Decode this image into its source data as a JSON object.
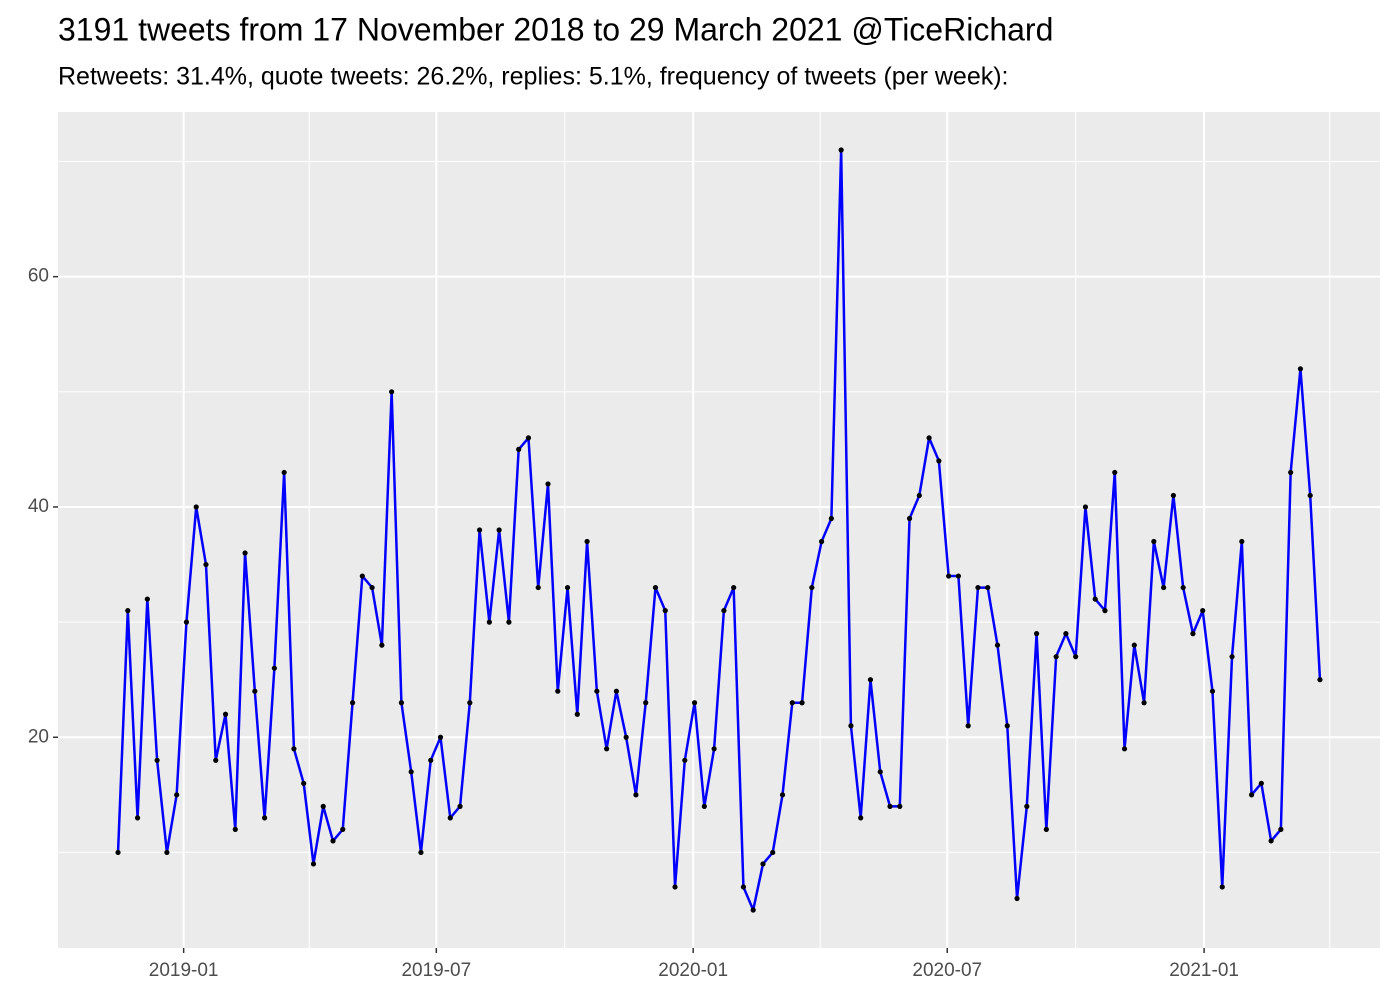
{
  "chart_data": {
    "type": "line",
    "title": "3191 tweets from 17 November 2018 to 29 March 2021 @TiceRichard",
    "subtitle": "Retweets: 31.4%, quote tweets: 26.2%, replies: 5.1%, frequency of tweets (per week):",
    "x": [
      "2018-11-15",
      "2018-11-22",
      "2018-11-29",
      "2018-12-06",
      "2018-12-13",
      "2018-12-20",
      "2018-12-27",
      "2019-01-03",
      "2019-01-10",
      "2019-01-17",
      "2019-01-24",
      "2019-01-31",
      "2019-02-07",
      "2019-02-14",
      "2019-02-21",
      "2019-02-28",
      "2019-03-07",
      "2019-03-14",
      "2019-03-21",
      "2019-03-28",
      "2019-04-04",
      "2019-04-11",
      "2019-04-18",
      "2019-04-25",
      "2019-05-02",
      "2019-05-09",
      "2019-05-16",
      "2019-05-23",
      "2019-05-30",
      "2019-06-06",
      "2019-06-13",
      "2019-06-20",
      "2019-06-27",
      "2019-07-04",
      "2019-07-11",
      "2019-07-18",
      "2019-07-25",
      "2019-08-01",
      "2019-08-08",
      "2019-08-15",
      "2019-08-22",
      "2019-08-29",
      "2019-09-05",
      "2019-09-12",
      "2019-09-19",
      "2019-09-26",
      "2019-10-03",
      "2019-10-10",
      "2019-10-17",
      "2019-10-24",
      "2019-10-31",
      "2019-11-07",
      "2019-11-14",
      "2019-11-21",
      "2019-11-28",
      "2019-12-05",
      "2019-12-12",
      "2019-12-19",
      "2019-12-26",
      "2020-01-02",
      "2020-01-09",
      "2020-01-16",
      "2020-01-23",
      "2020-01-30",
      "2020-02-06",
      "2020-02-13",
      "2020-02-20",
      "2020-02-27",
      "2020-03-05",
      "2020-03-12",
      "2020-03-19",
      "2020-03-26",
      "2020-04-02",
      "2020-04-09",
      "2020-04-16",
      "2020-04-23",
      "2020-04-30",
      "2020-05-07",
      "2020-05-14",
      "2020-05-21",
      "2020-05-28",
      "2020-06-04",
      "2020-06-11",
      "2020-06-18",
      "2020-06-25",
      "2020-07-02",
      "2020-07-09",
      "2020-07-16",
      "2020-07-23",
      "2020-07-30",
      "2020-08-06",
      "2020-08-13",
      "2020-08-20",
      "2020-08-27",
      "2020-09-03",
      "2020-09-10",
      "2020-09-17",
      "2020-09-24",
      "2020-10-01",
      "2020-10-08",
      "2020-10-15",
      "2020-10-22",
      "2020-10-29",
      "2020-11-05",
      "2020-11-12",
      "2020-11-19",
      "2020-11-26",
      "2020-12-03",
      "2020-12-10",
      "2020-12-17",
      "2020-12-24",
      "2020-12-31",
      "2021-01-07",
      "2021-01-14",
      "2021-01-21",
      "2021-01-28",
      "2021-02-04",
      "2021-02-11",
      "2021-02-18",
      "2021-02-25",
      "2021-03-04",
      "2021-03-11",
      "2021-03-18",
      "2021-03-25"
    ],
    "series": [
      {
        "color": "#0000ff",
        "point_color": "#000000",
        "values": [
          10,
          31,
          13,
          32,
          18,
          10,
          15,
          30,
          40,
          35,
          18,
          22,
          12,
          36,
          24,
          13,
          26,
          43,
          19,
          16,
          9,
          14,
          11,
          12,
          23,
          34,
          33,
          28,
          50,
          23,
          17,
          10,
          18,
          20,
          13,
          14,
          23,
          38,
          30,
          38,
          30,
          45,
          46,
          33,
          42,
          24,
          33,
          22,
          37,
          24,
          19,
          24,
          20,
          15,
          23,
          33,
          31,
          7,
          18,
          23,
          14,
          19,
          31,
          33,
          7,
          5,
          9,
          10,
          15,
          23,
          23,
          33,
          37,
          39,
          71,
          21,
          13,
          25,
          17,
          14,
          14,
          39,
          41,
          46,
          44,
          34,
          34,
          21,
          33,
          33,
          28,
          21,
          6,
          14,
          29,
          12,
          27,
          29,
          27,
          40,
          32,
          31,
          43,
          19,
          28,
          23,
          37,
          33,
          41,
          33,
          29,
          31,
          24,
          7,
          27,
          37,
          15,
          16,
          11,
          12,
          43,
          52,
          41,
          25
        ]
      }
    ],
    "xlim": [
      "2018-10-03",
      "2021-05-07"
    ],
    "xticks": [
      {
        "value": "2019-01-01",
        "label": "2019-01"
      },
      {
        "value": "2019-07-01",
        "label": "2019-07"
      },
      {
        "value": "2020-01-01",
        "label": "2020-01"
      },
      {
        "value": "2020-07-01",
        "label": "2020-07"
      },
      {
        "value": "2021-01-01",
        "label": "2021-01"
      }
    ],
    "x_minor_ticks": [
      "2019-04-01",
      "2019-10-01",
      "2020-04-01",
      "2020-10-01",
      "2021-04-01"
    ],
    "ylim": [
      1.7,
      74.3
    ],
    "yticks": [
      20,
      40,
      60
    ],
    "y_minor_ticks": [
      10,
      30,
      50,
      70
    ],
    "grid": true
  }
}
